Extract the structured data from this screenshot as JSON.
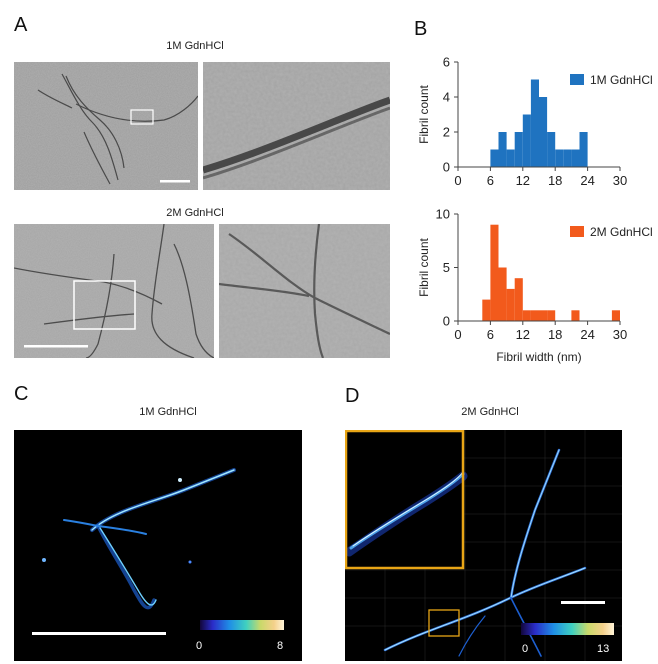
{
  "panels": {
    "A": {
      "letter": "A",
      "top_title": "1M GdnHCl",
      "bottom_title": "2M GdnHCl"
    },
    "B": {
      "letter": "B"
    },
    "C": {
      "letter": "C",
      "title": "1M GdnHCl",
      "colorbar": {
        "min": "0",
        "max": "8"
      }
    },
    "D": {
      "letter": "D",
      "title": "2M GdnHCl",
      "colorbar": {
        "min": "0",
        "max": "13"
      }
    }
  },
  "chart_data": [
    {
      "type": "bar",
      "title": "",
      "xlabel": "",
      "ylabel": "Fibril count",
      "legend": "1M GdnHCl",
      "legend_position": "top-right",
      "color": "#1f73c0",
      "xlim": [
        0,
        30
      ],
      "ylim": [
        0,
        6
      ],
      "xticks": [
        "0",
        "6",
        "12",
        "18",
        "24",
        "30"
      ],
      "yticks": [
        "0",
        "2",
        "4",
        "6"
      ],
      "bin_width": 1.5,
      "bins_start": [
        6,
        7.5,
        9,
        10.5,
        12,
        13.5,
        15,
        16.5,
        18,
        19.5,
        21,
        22.5
      ],
      "values": [
        1,
        2,
        1,
        2,
        3,
        5,
        4,
        2,
        1,
        1,
        1,
        2
      ]
    },
    {
      "type": "bar",
      "title": "",
      "xlabel": "Fibril width (nm)",
      "ylabel": "Fibril count",
      "legend": "2M GdnHCl",
      "legend_position": "top-right",
      "color": "#f25a1c",
      "xlim": [
        0,
        30
      ],
      "ylim": [
        0,
        10
      ],
      "xticks": [
        "0",
        "6",
        "12",
        "18",
        "24",
        "30"
      ],
      "yticks": [
        "0",
        "5",
        "10"
      ],
      "bin_width": 1.5,
      "bins_start": [
        4.5,
        6,
        7.5,
        9,
        10.5,
        12,
        13.5,
        15,
        16.5,
        18,
        19.5,
        21,
        22.5,
        24,
        25.5,
        27,
        28.5
      ],
      "values": [
        2,
        9,
        5,
        3,
        4,
        1,
        1,
        1,
        1,
        0,
        0,
        1,
        0,
        0,
        0,
        0,
        1
      ]
    }
  ]
}
